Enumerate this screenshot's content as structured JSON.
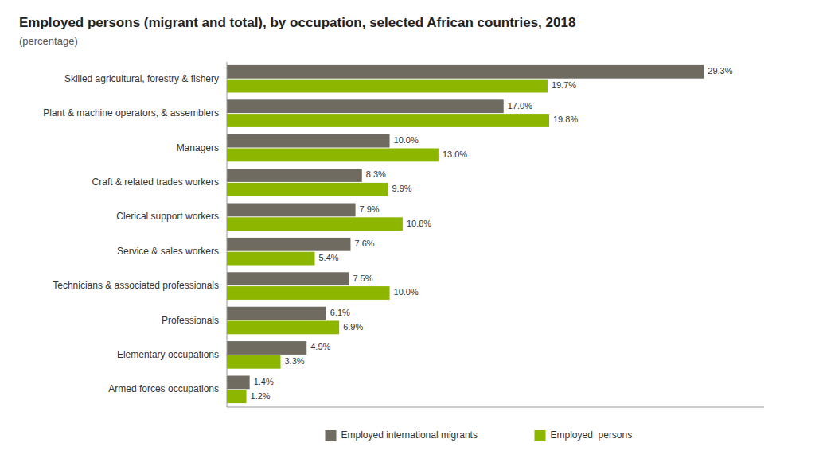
{
  "chart_data": {
    "type": "bar",
    "orientation": "horizontal",
    "title": "Employed persons (migrant and total), by occupation, selected African countries, 2018",
    "subtitle": "(percentage)",
    "categories": [
      "Skilled agricultural, forestry & fishery",
      "Plant & machine operators, & assemblers",
      "Managers",
      "Craft & related trades workers",
      "Clerical support workers",
      "Service & sales workers",
      "Technicians & associated professionals",
      "Professionals",
      "Elementary occupations",
      "Armed forces occupations"
    ],
    "series": [
      {
        "name": "Employed international migrants",
        "color": "#706B60",
        "values": [
          29.3,
          17.0,
          10.0,
          8.3,
          7.9,
          7.6,
          7.5,
          6.1,
          4.9,
          1.4
        ],
        "value_labels": [
          "29.3%",
          "17.0%",
          "10.0%",
          "8.3%",
          "7.9%",
          "7.6%",
          "7.5%",
          "6.1%",
          "4.9%",
          "1.4%"
        ]
      },
      {
        "name": "Employed  persons",
        "color": "#8DB600",
        "values": [
          19.7,
          19.8,
          13.0,
          9.9,
          10.8,
          5.4,
          10.0,
          6.9,
          3.3,
          1.2
        ],
        "value_labels": [
          "19.7%",
          "19.8%",
          "13.0%",
          "9.9%",
          "10.8%",
          "5.4%",
          "10.0%",
          "6.9%",
          "3.3%",
          "1.2%"
        ]
      }
    ],
    "xlim": [
      0,
      33
    ],
    "data_labels": true,
    "tick_labels": "y",
    "grid": false,
    "legend": "bottom"
  }
}
